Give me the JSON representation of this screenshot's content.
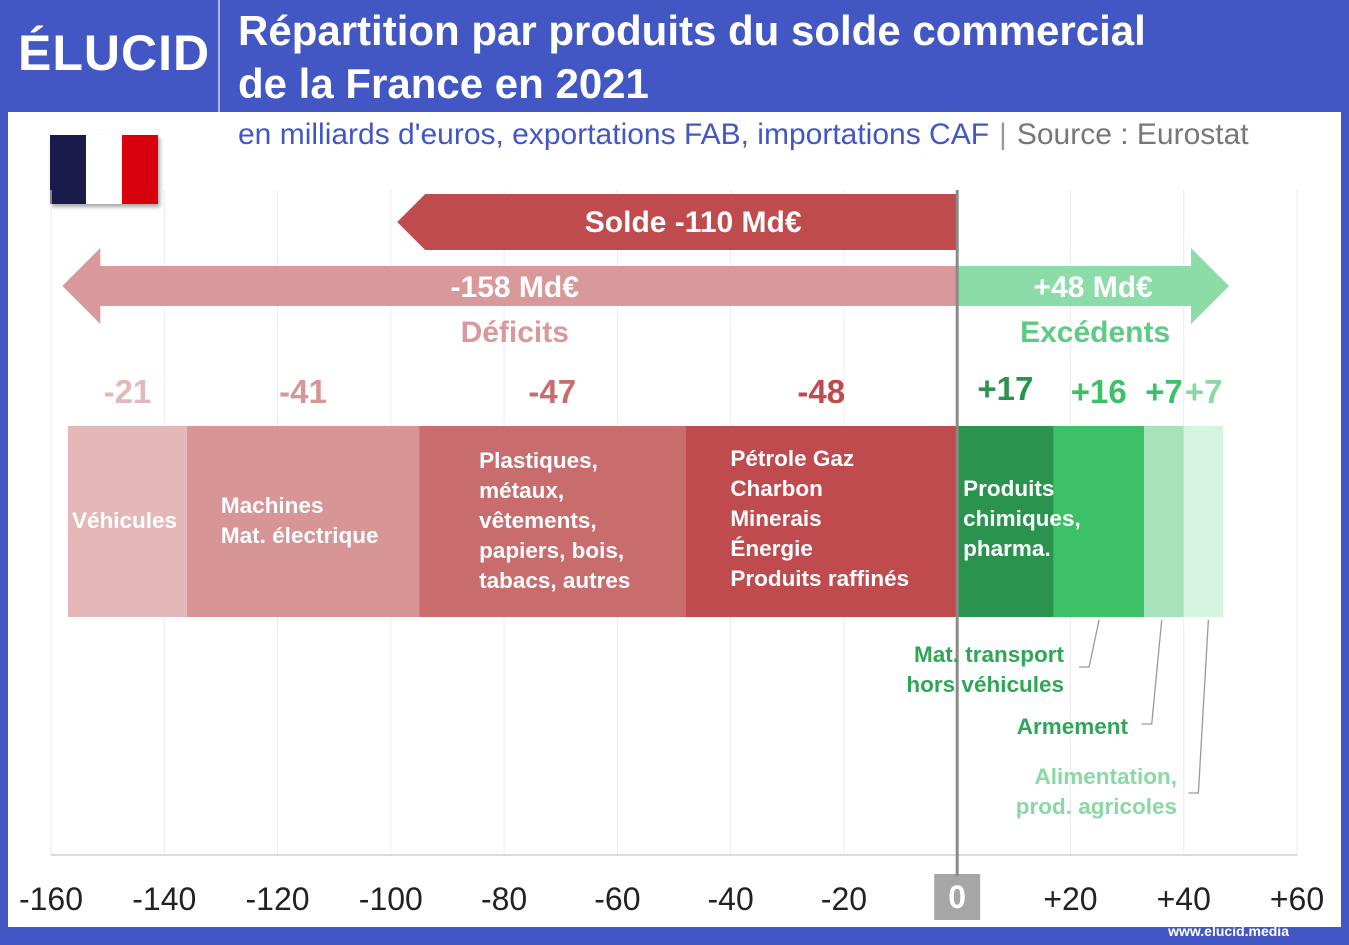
{
  "header": {
    "logo": "ÉLUCID",
    "title_line1": "Répartition par produits du solde commercial",
    "title_line2": "de la France en 2021"
  },
  "subtitle": {
    "units": "en milliards d'euros, exportations FAB, importations CAF",
    "separator": "|",
    "source": "Source : Eurostat"
  },
  "flag_colors": [
    "#1a1b4b",
    "#ffffff",
    "#d9000d"
  ],
  "footer": {
    "credit": "www.elucid.media"
  },
  "chart_data": {
    "type": "bar",
    "orientation": "horizontal-stacked",
    "xlim": [
      -160,
      60
    ],
    "x_ticks": [
      "-160",
      "-140",
      "-120",
      "-100",
      "-80",
      "-60",
      "-40",
      "-20",
      "0",
      "+20",
      "+40",
      "+60"
    ],
    "tick_values": [
      -160,
      -140,
      -120,
      -100,
      -80,
      -60,
      -40,
      -20,
      0,
      20,
      40,
      60
    ],
    "grid": true,
    "series": [
      {
        "category": "deficit",
        "value": -21,
        "value_label": "-21",
        "label": [
          "Véhicules"
        ],
        "color": "#e4b8b9",
        "value_color": "#e4b8b9",
        "label_color": "#ffffff"
      },
      {
        "category": "deficit",
        "value": -41,
        "value_label": "-41",
        "label": [
          "Machines",
          "Mat. électrique"
        ],
        "color": "#d79595",
        "value_color": "#d79595",
        "label_color": "#ffffff"
      },
      {
        "category": "deficit",
        "value": -47,
        "value_label": "-47",
        "label": [
          "Plastiques,",
          "métaux,",
          "vêtements,",
          "papiers, bois,",
          "tabacs, autres"
        ],
        "color": "#c86c6e",
        "value_color": "#c86c6e",
        "label_color": "#ffffff"
      },
      {
        "category": "deficit",
        "value": -48,
        "value_label": "-48",
        "label": [
          "Pétrole Gaz",
          "Charbon",
          "Minerais",
          "Énergie",
          "Produits raffinés"
        ],
        "color": "#bf4b4e",
        "value_color": "#bf4b4e",
        "label_color": "#ffffff"
      },
      {
        "category": "surplus",
        "value": 17,
        "value_label": "+17",
        "label": [
          "Produits",
          "chimiques,",
          "pharma."
        ],
        "color": "#2a934e",
        "value_color": "#2a934e",
        "label_color": "#ffffff"
      },
      {
        "category": "surplus",
        "value": 16,
        "value_label": "+16",
        "label": [
          "Mat. transport",
          "hors véhicules"
        ],
        "color": "#3cc167",
        "value_color": "#3cc167",
        "label_color": "#2fa657"
      },
      {
        "category": "surplus",
        "value": 7,
        "value_label": "+7",
        "label": [
          "Armement"
        ],
        "color": "#a6e3b9",
        "value_color": "#3cc167",
        "label_color": "#2fa657"
      },
      {
        "category": "surplus",
        "value": 7,
        "value_label": "+7",
        "label": [
          "Alimentation,",
          "prod. agricoles"
        ],
        "color": "#d5f4df",
        "value_color": "#8ad8a4",
        "label_color": "#8ad8a4"
      }
    ],
    "annotations": {
      "balance": {
        "label": "Solde -110 Md€",
        "value": -110,
        "color": "#bf4b4e"
      },
      "deficit_total": {
        "label": "-158 Md€",
        "value": -158,
        "caption": "Déficits",
        "color": "#d9999b"
      },
      "surplus_total": {
        "label": "+48 Md€",
        "value": 48,
        "caption": "Excédents",
        "color": "#8cdca8",
        "caption_color": "#5ccb83"
      }
    }
  }
}
